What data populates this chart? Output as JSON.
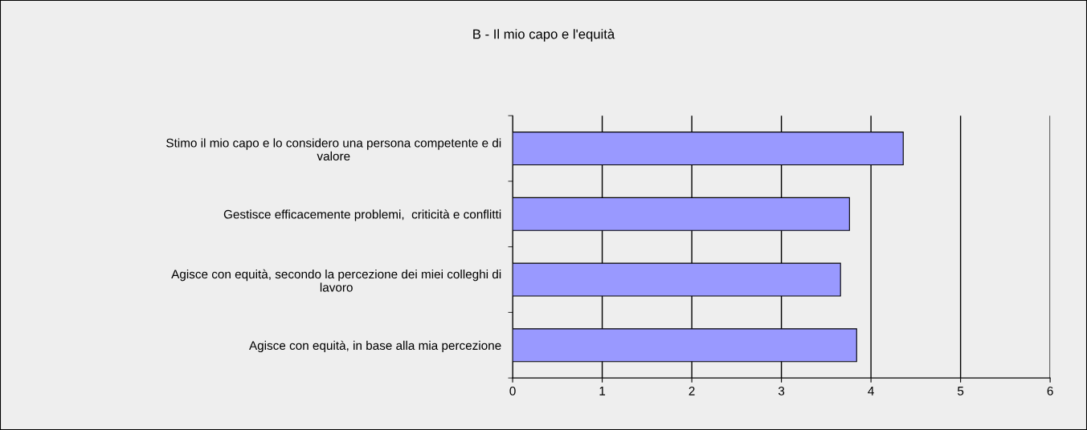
{
  "chart_data": {
    "type": "bar",
    "orientation": "horizontal",
    "title": "B - Il mio capo e l'equità",
    "categories": [
      "Stimo il mio capo e lo considero una persona competente e di\nvalore",
      "Gestisce efficacemente problemi,  criticità e conflitti",
      "Agisce con equità, secondo la percezione dei miei colleghi di\nlavoro",
      "Agisce con equità, in base alla mia percezione"
    ],
    "values": [
      4.36,
      3.76,
      3.66,
      3.84
    ],
    "color": "#9999ff",
    "xlim": [
      0,
      6
    ],
    "xticks": [
      0,
      1,
      2,
      3,
      4,
      5,
      6
    ],
    "grid": "x",
    "legend": false
  }
}
